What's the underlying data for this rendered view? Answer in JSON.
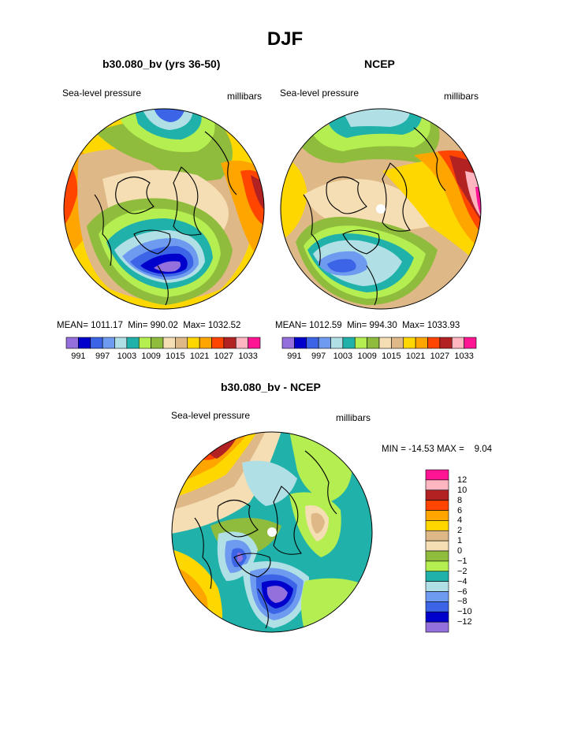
{
  "page": {
    "title": "DJF",
    "units_label": "millibars",
    "variable_label": "Sea-level pressure"
  },
  "chart_data": [
    {
      "type": "heatmap",
      "projection": "north-polar-stereographic",
      "title": "b30.080_bv (yrs 36-50)",
      "subtitle": "Sea-level pressure",
      "units": "millibars",
      "stats_text": "MEAN= 1011.17  Min= 990.02  Max= 1032.52",
      "mean": 1011.17,
      "min": 990.02,
      "max": 1032.52,
      "legend_levels": [
        "991",
        "997",
        "1003",
        "1009",
        "1015",
        "1021",
        "1027",
        "1033"
      ],
      "legend_colors": [
        "#9370db",
        "#0000cd",
        "#3c64e6",
        "#6e9bf0",
        "#b0e0e6",
        "#20b2aa",
        "#b4ee50",
        "#8fbc3c",
        "#f5deb3",
        "#deb887",
        "#ffd700",
        "#ffa500",
        "#ff4500",
        "#b22222",
        "#ffb6c1",
        "#ff1493"
      ]
    },
    {
      "type": "heatmap",
      "projection": "north-polar-stereographic",
      "title": "NCEP",
      "subtitle": "Sea-level pressure",
      "units": "millibars",
      "stats_text": "MEAN= 1012.59  Min= 994.30  Max= 1033.93",
      "mean": 1012.59,
      "min": 994.3,
      "max": 1033.93,
      "legend_levels": [
        "991",
        "997",
        "1003",
        "1009",
        "1015",
        "1021",
        "1027",
        "1033"
      ],
      "legend_colors": [
        "#9370db",
        "#0000cd",
        "#3c64e6",
        "#6e9bf0",
        "#b0e0e6",
        "#20b2aa",
        "#b4ee50",
        "#8fbc3c",
        "#f5deb3",
        "#deb887",
        "#ffd700",
        "#ffa500",
        "#ff4500",
        "#b22222",
        "#ffb6c1",
        "#ff1493"
      ]
    },
    {
      "type": "heatmap",
      "projection": "north-polar-stereographic",
      "title": "b30.080_bv - NCEP",
      "subtitle": "Sea-level pressure",
      "units": "millibars",
      "stats_text": "MIN = -14.53 MAX =    9.04",
      "min": -14.53,
      "max": 9.04,
      "legend_levels": [
        "12",
        "10",
        "8",
        "6",
        "4",
        "2",
        "1",
        "0",
        "−1",
        "−2",
        "−4",
        "−6",
        "−8",
        "−10",
        "−12"
      ],
      "legend_colors": [
        "#ff1493",
        "#ffb6c1",
        "#b22222",
        "#ff4500",
        "#ffa500",
        "#ffd700",
        "#deb887",
        "#f5deb3",
        "#8fbc3c",
        "#b4ee50",
        "#20b2aa",
        "#b0e0e6",
        "#6e9bf0",
        "#3c64e6",
        "#0000cd",
        "#9370db"
      ]
    }
  ]
}
